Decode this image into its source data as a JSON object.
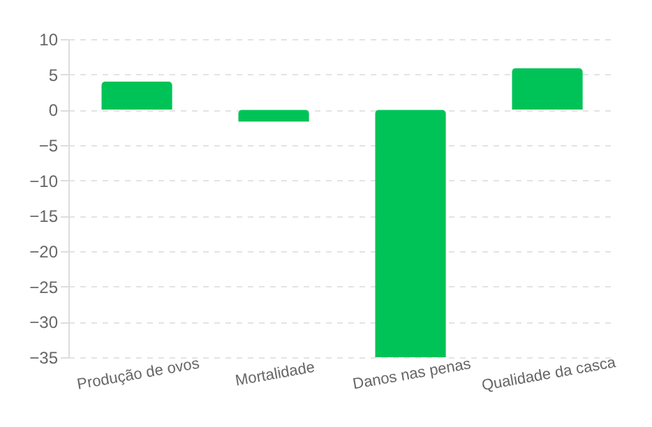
{
  "chart_data": {
    "type": "bar",
    "categories": [
      "Produção de ovos",
      "Mortalidade",
      "Danos nas penas",
      "Qualidade da casca"
    ],
    "values": [
      4,
      -1.7,
      -35,
      5.9
    ],
    "color": "#00c357",
    "ylim": [
      -35,
      10
    ],
    "yticks": [
      -35,
      -30,
      -25,
      -20,
      -15,
      -10,
      -5,
      0,
      5,
      10
    ],
    "grid": "y"
  }
}
